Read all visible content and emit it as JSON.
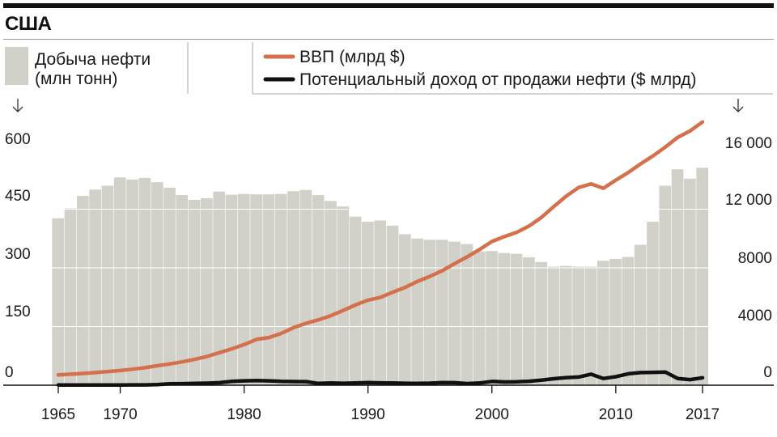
{
  "chart_data": {
    "type": "bar+line",
    "title": "США",
    "colors": {
      "bars": "#d1d0c9",
      "gdp": "#d4704c",
      "income": "#111111"
    },
    "legend": {
      "bars": [
        "Добыча нефти",
        "(млн тонн)"
      ],
      "gdp": "ВВП (млрд $)",
      "income": "Потенциальный доход от продажи нефти ($ млрд)"
    },
    "x_ticks": [
      "1965",
      "1970",
      "1980",
      "1990",
      "2000",
      "2010",
      "2017"
    ],
    "y_left": {
      "ticks": [
        "0",
        "150",
        "300",
        "450",
        "600"
      ],
      "range": [
        0,
        600
      ]
    },
    "y_right": {
      "ticks": [
        "0",
        "4000",
        "8000",
        "12 000",
        "16 000"
      ],
      "range": [
        0,
        16000
      ]
    },
    "years": [
      1965,
      1966,
      1967,
      1968,
      1969,
      1970,
      1971,
      1972,
      1973,
      1974,
      1975,
      1976,
      1977,
      1978,
      1979,
      1980,
      1981,
      1982,
      1983,
      1984,
      1985,
      1986,
      1987,
      1988,
      1989,
      1990,
      1991,
      1992,
      1993,
      1994,
      1995,
      1996,
      1997,
      1998,
      1999,
      2000,
      2001,
      2002,
      2003,
      2004,
      2005,
      2006,
      2007,
      2008,
      2009,
      2010,
      2011,
      2012,
      2013,
      2014,
      2015,
      2016,
      2017
    ],
    "oil_production": [
      427,
      452,
      484,
      500,
      510,
      531,
      526,
      530,
      519,
      505,
      486,
      474,
      478,
      495,
      487,
      489,
      488,
      488,
      489,
      496,
      499,
      486,
      471,
      457,
      431,
      418,
      421,
      408,
      386,
      375,
      372,
      372,
      367,
      361,
      342,
      343,
      338,
      336,
      327,
      315,
      303,
      305,
      303,
      303,
      318,
      323,
      328,
      359,
      418,
      510,
      552,
      528,
      556
    ],
    "gdp": [
      700,
      750,
      800,
      860,
      930,
      1000,
      1090,
      1190,
      1330,
      1450,
      1590,
      1760,
      1960,
      2220,
      2480,
      2770,
      3120,
      3250,
      3530,
      3930,
      4220,
      4460,
      4740,
      5100,
      5480,
      5800,
      5990,
      6340,
      6670,
      7080,
      7420,
      7810,
      8290,
      8750,
      9250,
      9800,
      10130,
      10420,
      10850,
      11440,
      12180,
      12890,
      13480,
      13720,
      13430,
      13980,
      14500,
      15090,
      15630,
      16240,
      16900,
      17340,
      17950
    ],
    "oil_income": [
      14,
      15,
      16,
      17,
      18,
      19,
      21,
      24,
      40,
      95,
      105,
      120,
      140,
      170,
      260,
      300,
      320,
      300,
      260,
      250,
      240,
      120,
      150,
      130,
      150,
      180,
      160,
      150,
      130,
      120,
      140,
      180,
      170,
      110,
      150,
      260,
      220,
      230,
      270,
      350,
      440,
      520,
      560,
      750,
      460,
      580,
      780,
      860,
      880,
      900,
      450,
      380,
      510
    ]
  }
}
